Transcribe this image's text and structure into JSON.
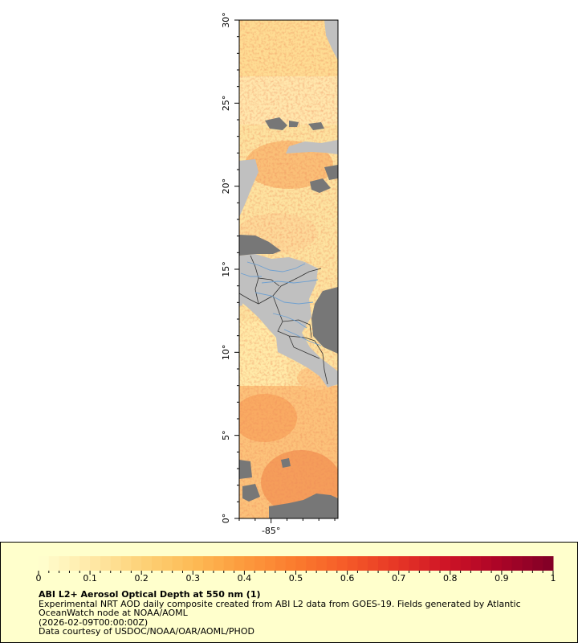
{
  "map": {
    "lat_ticks": [
      "0°",
      "5°",
      "10°",
      "15°",
      "20°",
      "25°",
      "30°"
    ],
    "lon_ticks": [
      "-85°"
    ],
    "lat_range": [
      0,
      30
    ],
    "lon_range": [
      -87,
      -80.8
    ],
    "colors": {
      "land_gray": "#c0c0c0",
      "masked_gray": "#777777",
      "border": "#333333",
      "river": "#6fa0d0"
    }
  },
  "legend": {
    "ticks": [
      "0",
      "0.1",
      "0.2",
      "0.3",
      "0.4",
      "0.5",
      "0.6",
      "0.7",
      "0.8",
      "0.9",
      "1"
    ],
    "range": [
      0,
      1
    ],
    "colorscale": [
      "#ffffd0",
      "#ffe9a8",
      "#fdd278",
      "#fdbb55",
      "#fc9a3d",
      "#fb7b2e",
      "#f55a28",
      "#e53526",
      "#cc1226",
      "#a90427",
      "#800026"
    ],
    "title": "ABI L2+ Aerosol Optical Depth at 550 nm (1)",
    "line1": "Experimental NRT AOD daily composite created from ABI L2 data from GOES-19. Fields generated by Atlantic OceanWatch node at NOAA/AOML",
    "line2": "(2026-02-09T00:00:00Z)",
    "line3": "Data courtesy of USDOC/NOAA/OAR/AOML/PHOD"
  }
}
